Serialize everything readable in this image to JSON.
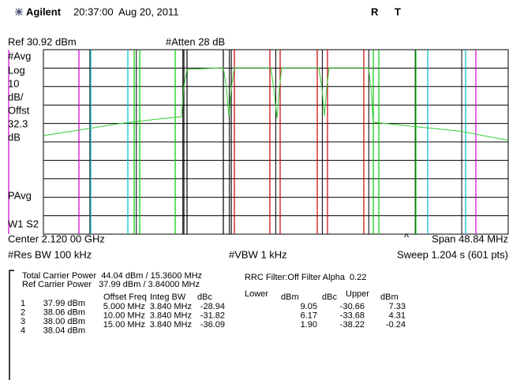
{
  "header": {
    "brand": "Agilent",
    "datetime": "20:37:00  Aug 20, 2011",
    "flag_r": "R",
    "flag_t": "T"
  },
  "display": {
    "ref": "Ref 30.92 dBm",
    "atten": "#Atten 28 dB",
    "left_labels": [
      "#Avg",
      "Log",
      "10",
      "dB/",
      "Offst",
      "32.3",
      "dB",
      "PAvg",
      "W1  S2"
    ],
    "center": "Center 2.120 00 GHz",
    "marker": "^",
    "span": "Span 48.84 MHz",
    "res_bw": "#Res BW 100 kHz",
    "vbw": "#VBW 1 kHz",
    "sweep": "Sweep 1.204 s (601 pts)"
  },
  "measurement": {
    "total_carrier_power": "Total Carrier Power  44.04 dBm / 15.3600 MHz",
    "ref_carrier_power": "Ref Carrier Power   37.99 dBm / 3.84000 MHz",
    "rrc_filter": "RRC Filter:Off Filter Alpha  0.22",
    "carriers": [
      [
        "1",
        "37.99 dBm"
      ],
      [
        "2",
        "38.06 dBm"
      ],
      [
        "3",
        "38.00 dBm"
      ],
      [
        "4",
        "38.04 dBm"
      ]
    ],
    "headers": [
      "Offset Freq",
      "Integ BW",
      "dBc",
      "Lower",
      "dBm",
      "dBc",
      "Upper",
      "dBm"
    ],
    "rows": [
      [
        "5.000 MHz",
        "3.840 MHz",
        "-28.94",
        "9.05",
        "-30.66",
        "7.33"
      ],
      [
        "10.00 MHz",
        "3.840 MHz",
        "-31.82",
        "6.17",
        "-33.68",
        "4.31"
      ],
      [
        "15.00 MHz",
        "3.840 MHz",
        "-36.09",
        "1.90",
        "-38.22",
        "-0.24"
      ]
    ]
  }
}
